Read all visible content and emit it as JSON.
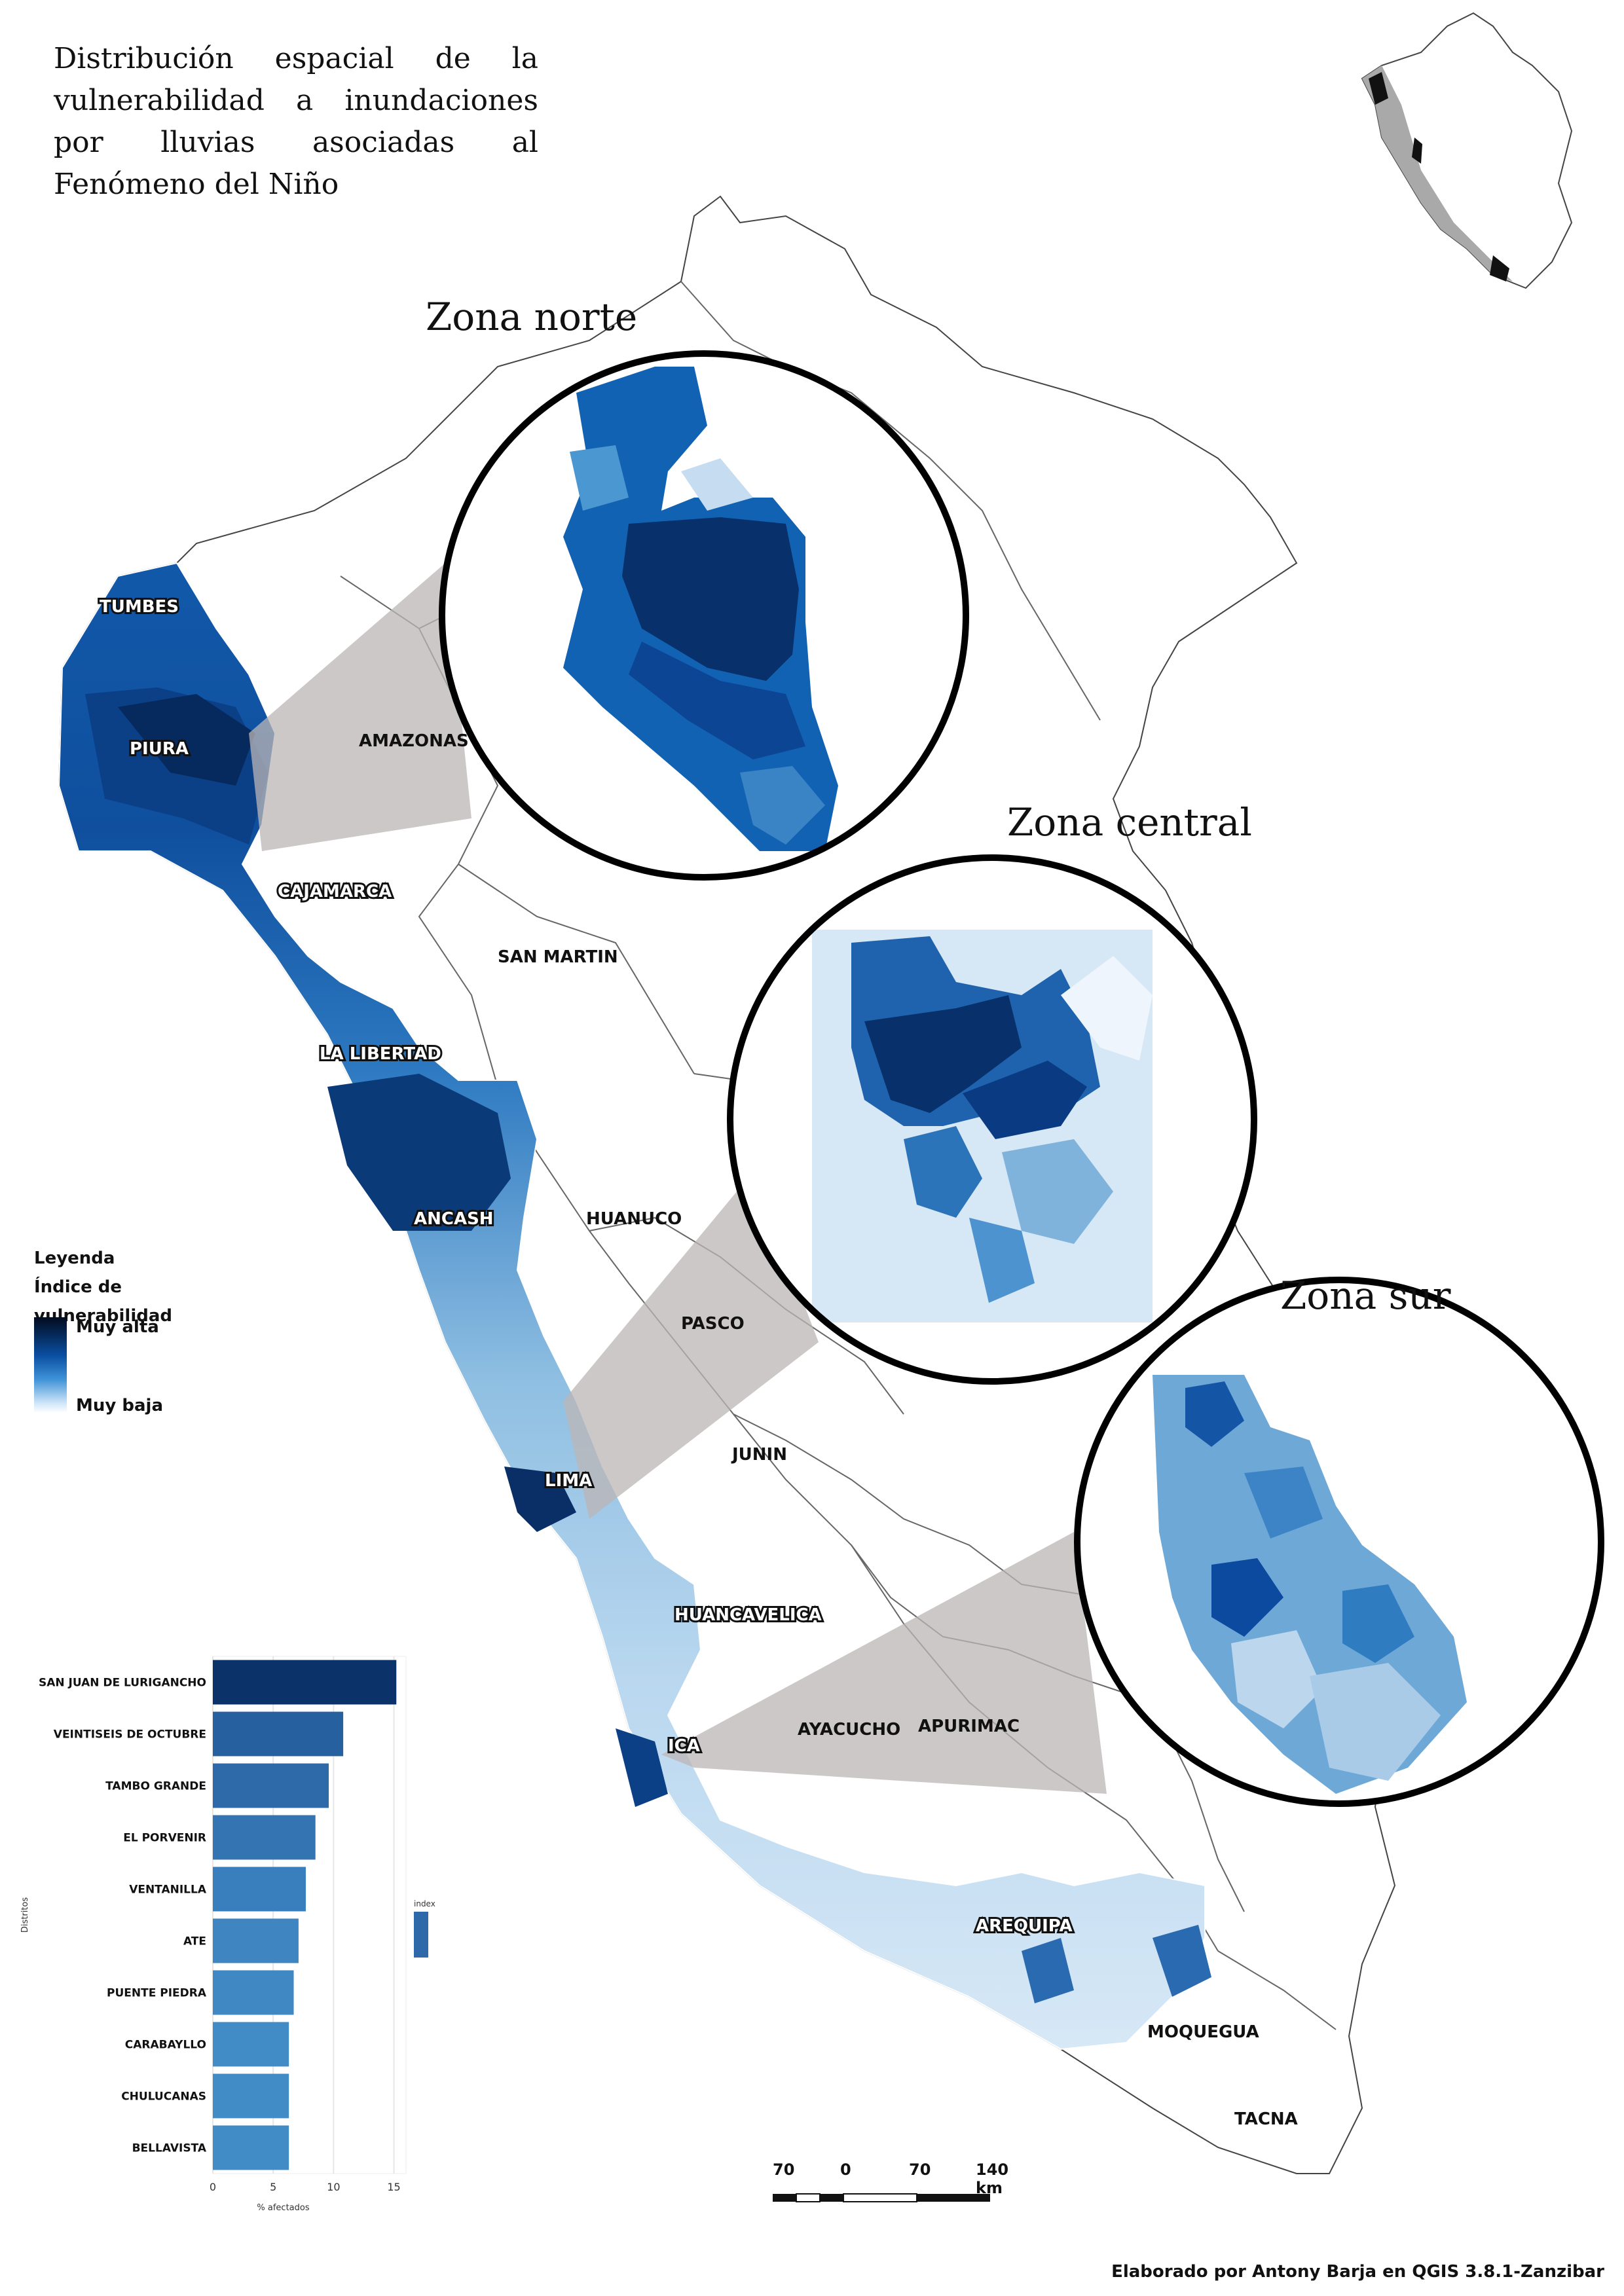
{
  "title": "Distribución espacial de la vulnerabilidad a inundaciones por lluvias asociadas al Fenómeno del Niño",
  "zones": {
    "north": "Zona norte",
    "central": "Zona central",
    "south": "Zona sur"
  },
  "regions": [
    "TUMBES",
    "PIURA",
    "AMAZONAS",
    "CAJAMARCA",
    "SAN MARTIN",
    "LA LIBERTAD",
    "ANCASH",
    "HUANUCO",
    "PASCO",
    "JUNIN",
    "LIMA",
    "HUANCAVELICA",
    "ICA",
    "AYACUCHO",
    "APURIMAC",
    "AREQUIPA",
    "MOQUEGUA",
    "TACNA"
  ],
  "legend": {
    "heading": "Leyenda",
    "subheading": "Índice de vulnerabilidad",
    "high": "Muy alta",
    "low": "Muy baja"
  },
  "scale_bar": {
    "labels": [
      "70",
      "0",
      "70",
      "140 km"
    ]
  },
  "credit": "Elaborado por Antony Barja en QGIS 3.8.1-Zanzibar",
  "colors": {
    "very_high": "#08306b",
    "high": "#0d52a6",
    "mid": "#4292c6",
    "low": "#9ecae1",
    "very_low": "#deebf7",
    "zoom_cone": "#c9c4c4"
  },
  "chart_data": {
    "type": "bar",
    "orientation": "horizontal",
    "categories": [
      "SAN JUAN DE LURIGANCHO",
      "VEINTISEIS DE OCTUBRE",
      "TAMBO GRANDE",
      "EL PORVENIR",
      "VENTANILLA",
      "ATE",
      "PUENTE PIEDRA",
      "CARABAYLLO",
      "CHULUCANAS",
      "BELLAVISTA"
    ],
    "values": [
      15.2,
      10.8,
      9.6,
      8.5,
      7.7,
      7.1,
      6.7,
      6.3,
      6.3,
      6.3
    ],
    "xlabel": "% afectados",
    "ylabel": "Distritos",
    "xticks": [
      0,
      5,
      10,
      15
    ],
    "xlim": [
      0,
      16
    ],
    "legend_title": "index",
    "colors": [
      "#0b3369",
      "#26609f",
      "#2e6aaa",
      "#3474b3",
      "#3a7fbd",
      "#3e85c2",
      "#3f88c4",
      "#418cc7",
      "#418cc7",
      "#418cc7"
    ]
  }
}
